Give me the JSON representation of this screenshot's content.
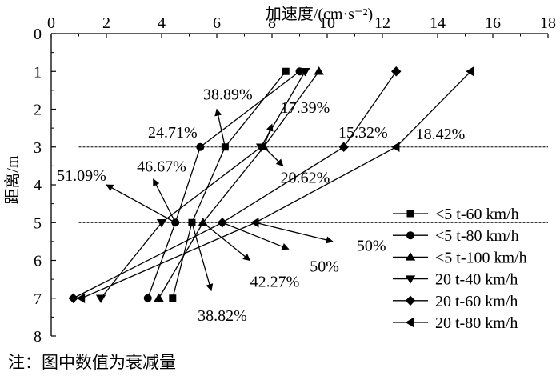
{
  "chart_data": {
    "type": "line",
    "xlabel": "加速度/(cm·s⁻²)",
    "ylabel": "距离/m",
    "xlim": [
      0,
      18
    ],
    "ylim": [
      0,
      8
    ],
    "x_ticks": [
      "0",
      "2",
      "4",
      "6",
      "8",
      "10",
      "12",
      "14",
      "16",
      "18"
    ],
    "y_ticks": [
      "0",
      "1",
      "2",
      "3",
      "4",
      "5",
      "6",
      "7",
      "8"
    ],
    "y_inverted": true,
    "reference_lines_y": [
      3,
      5
    ],
    "legend_position": "right",
    "series": [
      {
        "name": "<5 t-60 km/h",
        "marker": "square",
        "points": [
          {
            "x": 8.5,
            "y": 1
          },
          {
            "x": 6.3,
            "y": 3
          },
          {
            "x": 5.1,
            "y": 5
          },
          {
            "x": 4.4,
            "y": 7
          }
        ]
      },
      {
        "name": "<5 t-80 km/h",
        "marker": "circle",
        "points": [
          {
            "x": 9.0,
            "y": 1
          },
          {
            "x": 5.4,
            "y": 3
          },
          {
            "x": 4.5,
            "y": 5
          },
          {
            "x": 3.5,
            "y": 7
          }
        ]
      },
      {
        "name": "<5 t-100 km/h",
        "marker": "triangle-up",
        "points": [
          {
            "x": 9.7,
            "y": 1
          },
          {
            "x": 7.7,
            "y": 3
          },
          {
            "x": 5.5,
            "y": 5
          },
          {
            "x": 3.9,
            "y": 7
          }
        ]
      },
      {
        "name": "20 t-40 km/h",
        "marker": "triangle-down",
        "points": [
          {
            "x": 9.2,
            "y": 1
          },
          {
            "x": 7.6,
            "y": 3
          },
          {
            "x": 4.0,
            "y": 5
          },
          {
            "x": 1.8,
            "y": 7
          }
        ]
      },
      {
        "name": "20 t-60 km/h",
        "marker": "diamond",
        "points": [
          {
            "x": 12.5,
            "y": 1
          },
          {
            "x": 10.6,
            "y": 3
          },
          {
            "x": 6.2,
            "y": 5
          },
          {
            "x": 0.8,
            "y": 7
          }
        ]
      },
      {
        "name": "20 t-80 km/h",
        "marker": "triangle-left",
        "points": [
          {
            "x": 15.2,
            "y": 1
          },
          {
            "x": 12.5,
            "y": 3
          },
          {
            "x": 7.4,
            "y": 5
          },
          {
            "x": 1.1,
            "y": 7
          }
        ]
      }
    ],
    "annotations": [
      {
        "text": "38.89%",
        "arrow_from": {
          "x": 6.3,
          "y": 3
        },
        "arrow_to": {
          "x": 6.0,
          "y": 2.0
        },
        "text_at": {
          "x": 6.4,
          "y": 1.6
        }
      },
      {
        "text": "17.39%",
        "arrow_from": {
          "x": 7.7,
          "y": 3
        },
        "arrow_to": {
          "x": 8.0,
          "y": 2.4
        },
        "text_at": {
          "x": 9.2,
          "y": 1.95
        }
      },
      {
        "text": "24.71%",
        "arrow_from": null,
        "arrow_to": null,
        "text_at": {
          "x": 4.4,
          "y": 2.6
        }
      },
      {
        "text": "15.32%",
        "arrow_from": null,
        "arrow_to": null,
        "text_at": {
          "x": 11.3,
          "y": 2.6
        }
      },
      {
        "text": "18.42%",
        "arrow_from": null,
        "arrow_to": null,
        "text_at": {
          "x": 14.1,
          "y": 2.65
        }
      },
      {
        "text": "20.62%",
        "arrow_from": {
          "x": 7.7,
          "y": 3
        },
        "arrow_to": {
          "x": 8.4,
          "y": 3.5
        },
        "text_at": {
          "x": 9.2,
          "y": 3.8
        }
      },
      {
        "text": "51.09%",
        "arrow_from": {
          "x": 4.5,
          "y": 5
        },
        "arrow_to": {
          "x": 2.0,
          "y": 4.0
        },
        "text_at": {
          "x": 1.1,
          "y": 3.75
        }
      },
      {
        "text": "46.67%",
        "arrow_from": {
          "x": 4.5,
          "y": 5
        },
        "arrow_to": {
          "x": 3.7,
          "y": 3.85
        },
        "text_at": {
          "x": 4.0,
          "y": 3.5
        }
      },
      {
        "text": "50%",
        "arrow_from": {
          "x": 7.4,
          "y": 5
        },
        "arrow_to": {
          "x": 10.2,
          "y": 5.5
        },
        "text_at": {
          "x": 11.6,
          "y": 5.6
        }
      },
      {
        "text": "50%",
        "arrow_from": {
          "x": 6.2,
          "y": 5
        },
        "arrow_to": {
          "x": 8.6,
          "y": 5.7
        },
        "text_at": {
          "x": 9.9,
          "y": 6.15
        }
      },
      {
        "text": "42.27%",
        "arrow_from": {
          "x": 5.5,
          "y": 5
        },
        "arrow_to": {
          "x": 7.2,
          "y": 6.0
        },
        "text_at": {
          "x": 8.1,
          "y": 6.55
        }
      },
      {
        "text": "38.82%",
        "arrow_from": {
          "x": 5.1,
          "y": 5
        },
        "arrow_to": {
          "x": 5.8,
          "y": 6.8
        },
        "text_at": {
          "x": 6.2,
          "y": 7.45
        }
      }
    ]
  },
  "footnote": "注：图中数值为衰减量"
}
